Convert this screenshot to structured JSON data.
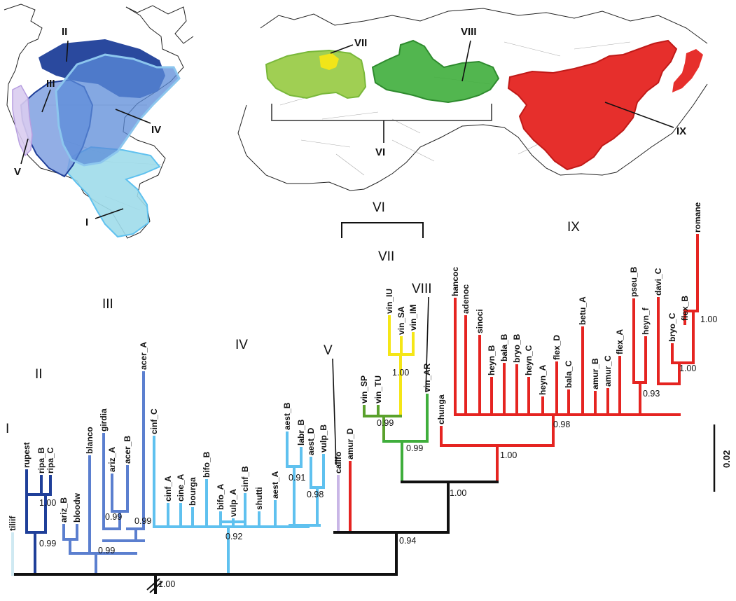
{
  "colors": {
    "I": "#9fdcea",
    "II": "#1f3f99",
    "III": "#5b7fcf",
    "IV": "#5fc1ef",
    "V": "#c9b6e6",
    "VI": "#5aa12c",
    "VII": "#f5e616",
    "VIII": "#3fae3c",
    "IX": "#e52421",
    "root": "#111111",
    "tililf": "#cfe9f2"
  },
  "map_labels": {
    "I": "I",
    "II": "II",
    "III": "III",
    "IV": "IV",
    "V": "V",
    "VI": "VI",
    "VII": "VII",
    "VIII": "VIII",
    "IX": "IX"
  },
  "clade_labels": {
    "I": "I",
    "II": "II",
    "III": "III",
    "IV": "IV",
    "V": "V",
    "VI": "VI",
    "VII": "VII",
    "VIII": "VIII",
    "IX": "IX"
  },
  "taxa": [
    "tiliif",
    "rupest",
    "ripa_B",
    "ripa_C",
    "ariz_B",
    "bloodw",
    "blanco",
    "girdia",
    "ariz_A",
    "acer_B",
    "acer_A",
    "cinf_C",
    "cinf_A",
    "cine_A",
    "bourga",
    "bifo_B",
    "bifo_A",
    "vulp_A",
    "cinf_B",
    "shutti",
    "aest_A",
    "aest_B",
    "labr_B",
    "aest_D",
    "vulp_B",
    "califo",
    "amur_D",
    "vin_SP",
    "vin_TU",
    "vin_IU",
    "vin_SA",
    "vin_IM",
    "vin_AR",
    "chunga",
    "hancoc",
    "adenoc",
    "sinoci",
    "heyn_B",
    "bala_B",
    "bryo_B",
    "heyn_C",
    "heyn_A",
    "flex_D",
    "bala_C",
    "betu_A",
    "amur_B",
    "amur_C",
    "flex_A",
    "pseu_B",
    "heyn_f",
    "davi_C",
    "bryo_C",
    "flex_B",
    "romane"
  ],
  "supports": [
    "1.00",
    "0.99",
    "0.99",
    "0.99",
    "0.99",
    "0.92",
    "0.91",
    "0.98",
    "0.94",
    "0.99",
    "0.99",
    "1.00",
    "1.00",
    "1.00",
    "0.98",
    "0.93",
    "1.00",
    "1.00",
    "1.00"
  ],
  "scale_bar": "0.02"
}
